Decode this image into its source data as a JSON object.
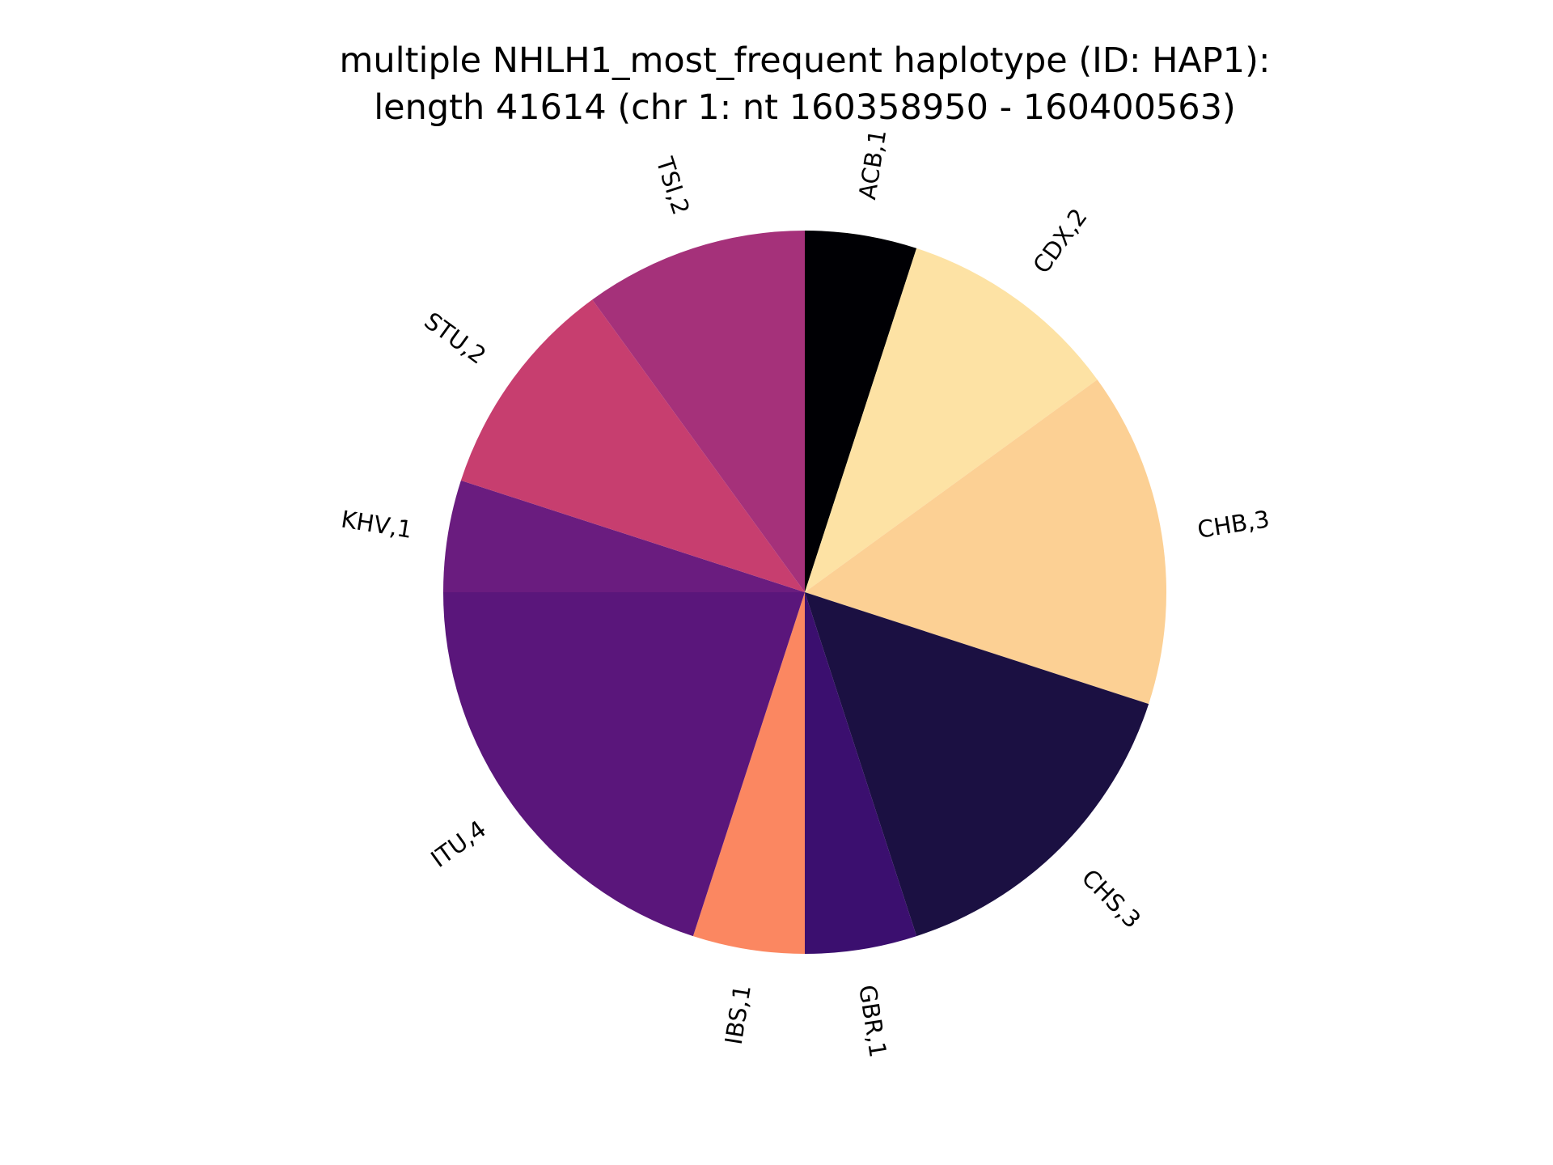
{
  "chart_data": {
    "type": "pie",
    "title": "multiple NHLH1_most_frequent haplotype (ID: HAP1):",
    "subtitle": "length 41614 (chr 1: nt 160358950 - 160400563)",
    "start_angle_deg": 90,
    "direction": "clockwise",
    "slices": [
      {
        "label": "ACB,1",
        "value": 1,
        "color": "#000004"
      },
      {
        "label": "CDX,2",
        "value": 2,
        "color": "#fde2a4"
      },
      {
        "label": "CHB,3",
        "value": 3,
        "color": "#fcd094"
      },
      {
        "label": "CHS,3",
        "value": 3,
        "color": "#1b1042"
      },
      {
        "label": "GBR,1",
        "value": 1,
        "color": "#3b0f6f"
      },
      {
        "label": "IBS,1",
        "value": 1,
        "color": "#fb8761"
      },
      {
        "label": "ITU,4",
        "value": 4,
        "color": "#5a167b"
      },
      {
        "label": "KHV,1",
        "value": 1,
        "color": "#6a1c7f"
      },
      {
        "label": "STU,2",
        "value": 2,
        "color": "#c73e6f"
      },
      {
        "label": "TSI,2",
        "value": 2,
        "color": "#a5317a"
      }
    ]
  }
}
